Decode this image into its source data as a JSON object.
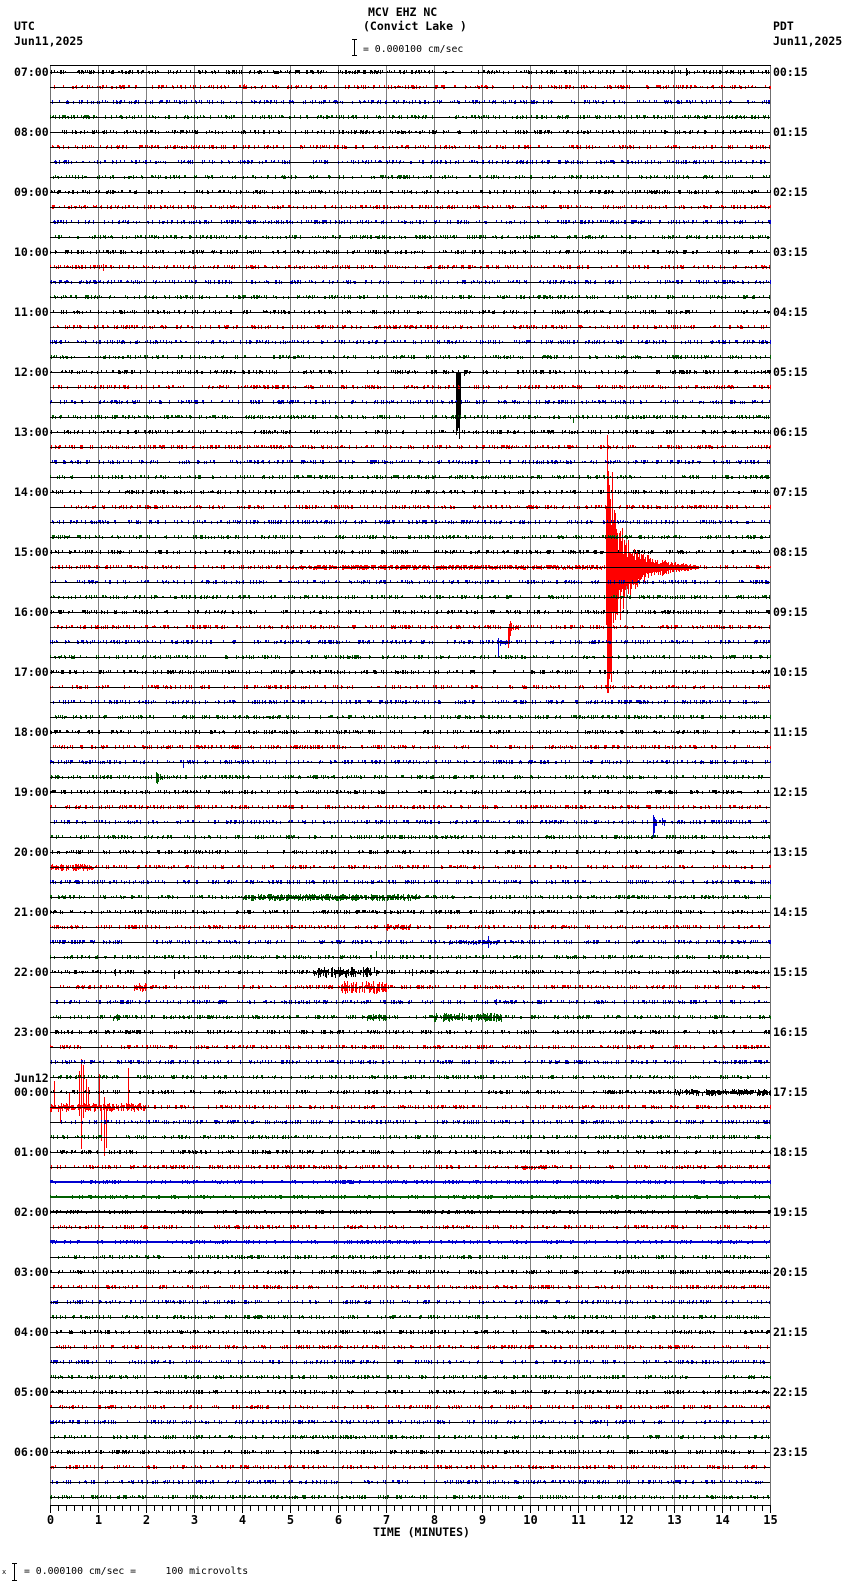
{
  "header": {
    "station": "MCV EHZ NC",
    "location": "(Convict Lake )",
    "scale_text": "= 0.000100 cm/sec",
    "left_tz": "UTC",
    "left_date": "Jun11,2025",
    "right_tz": "PDT",
    "right_date": "Jun11,2025"
  },
  "footer": {
    "glyph": "x",
    "text": "= 0.000100 cm/sec =     100 microvolts"
  },
  "chart_data": {
    "type": "line",
    "subtype": "helicorder",
    "title": "MCV EHZ NC",
    "subtitle": "(Convict Lake )",
    "xlabel": "TIME (MINUTES)",
    "ylabel_left": "UTC",
    "ylabel_right": "PDT",
    "xlim": [
      0,
      15
    ],
    "x_ticks": [
      0,
      1,
      2,
      3,
      4,
      5,
      6,
      7,
      8,
      9,
      10,
      11,
      12,
      13,
      14,
      15
    ],
    "minor_tick_seconds": 10,
    "trace_minutes": 15,
    "trace_count": 96,
    "grid": true,
    "grid_color": "#808080",
    "border_color": "#707070",
    "trace_colors": [
      "#000000",
      "#ff0000",
      "#0000d0",
      "#006000"
    ],
    "noise_amp": 2,
    "noise_density": 0.35,
    "scale": "0.000100 cm/sec = 100 microvolts",
    "date_change_label": {
      "trace": 68,
      "text": "Jun12"
    },
    "left_labels": [
      {
        "trace": 0,
        "text": "07:00"
      },
      {
        "trace": 4,
        "text": "08:00"
      },
      {
        "trace": 8,
        "text": "09:00"
      },
      {
        "trace": 12,
        "text": "10:00"
      },
      {
        "trace": 16,
        "text": "11:00"
      },
      {
        "trace": 20,
        "text": "12:00"
      },
      {
        "trace": 24,
        "text": "13:00"
      },
      {
        "trace": 28,
        "text": "14:00"
      },
      {
        "trace": 32,
        "text": "15:00"
      },
      {
        "trace": 36,
        "text": "16:00"
      },
      {
        "trace": 40,
        "text": "17:00"
      },
      {
        "trace": 44,
        "text": "18:00"
      },
      {
        "trace": 48,
        "text": "19:00"
      },
      {
        "trace": 52,
        "text": "20:00"
      },
      {
        "trace": 56,
        "text": "21:00"
      },
      {
        "trace": 60,
        "text": "22:00"
      },
      {
        "trace": 64,
        "text": "23:00"
      },
      {
        "trace": 68,
        "text": "00:00"
      },
      {
        "trace": 72,
        "text": "01:00"
      },
      {
        "trace": 76,
        "text": "02:00"
      },
      {
        "trace": 80,
        "text": "03:00"
      },
      {
        "trace": 84,
        "text": "04:00"
      },
      {
        "trace": 88,
        "text": "05:00"
      },
      {
        "trace": 92,
        "text": "06:00"
      }
    ],
    "right_labels": [
      {
        "trace": 0,
        "text": "00:15"
      },
      {
        "trace": 4,
        "text": "01:15"
      },
      {
        "trace": 8,
        "text": "02:15"
      },
      {
        "trace": 12,
        "text": "03:15"
      },
      {
        "trace": 16,
        "text": "04:15"
      },
      {
        "trace": 20,
        "text": "05:15"
      },
      {
        "trace": 24,
        "text": "06:15"
      },
      {
        "trace": 28,
        "text": "07:15"
      },
      {
        "trace": 32,
        "text": "08:15"
      },
      {
        "trace": 36,
        "text": "09:15"
      },
      {
        "trace": 40,
        "text": "10:15"
      },
      {
        "trace": 44,
        "text": "11:15"
      },
      {
        "trace": 48,
        "text": "12:15"
      },
      {
        "trace": 52,
        "text": "13:15"
      },
      {
        "trace": 56,
        "text": "14:15"
      },
      {
        "trace": 60,
        "text": "15:15"
      },
      {
        "trace": 64,
        "text": "16:15"
      },
      {
        "trace": 68,
        "text": "17:15"
      },
      {
        "trace": 72,
        "text": "18:15"
      },
      {
        "trace": 76,
        "text": "19:15"
      },
      {
        "trace": 80,
        "text": "20:15"
      },
      {
        "trace": 84,
        "text": "21:15"
      },
      {
        "trace": 88,
        "text": "22:15"
      },
      {
        "trace": 92,
        "text": "23:15"
      }
    ],
    "thick_traces": [
      74,
      75,
      76,
      78
    ],
    "features": [
      {
        "trace": 0,
        "spikes": [
          [
            13.25,
            4,
            3
          ],
          [
            13.28,
            2,
            2
          ],
          [
            14.38,
            2,
            2
          ]
        ]
      },
      {
        "trace": 1,
        "spikes": [
          [
            4.05,
            3,
            1
          ]
        ]
      },
      {
        "trace": 13,
        "spikes": [
          [
            1.1,
            3,
            3
          ]
        ]
      },
      {
        "trace": 20,
        "spikes": [
          [
            8.45,
            0,
            60
          ],
          [
            8.46,
            0,
            62
          ],
          [
            8.47,
            0,
            58
          ],
          [
            8.51,
            0,
            55
          ],
          [
            8.52,
            0,
            64
          ],
          [
            8.53,
            0,
            66
          ],
          [
            8.54,
            0,
            45
          ],
          [
            8.62,
            0,
            3
          ]
        ]
      },
      {
        "trace": 23,
        "spikes": [
          [
            10.9,
            0,
            5
          ]
        ]
      },
      {
        "trace": 33,
        "bursts": [
          [
            5.0,
            11.58,
            2
          ]
        ],
        "envelope": [
          [
            11.58,
            142,
            131
          ],
          [
            11.7,
            138,
            128
          ],
          [
            11.73,
            60,
            70
          ],
          [
            11.87,
            45,
            55
          ],
          [
            12.0,
            32,
            36
          ],
          [
            12.15,
            20,
            22
          ],
          [
            12.5,
            12,
            12
          ],
          [
            12.85,
            6,
            6
          ],
          [
            13.5,
            2,
            2
          ]
        ]
      },
      {
        "trace": 37,
        "spikes": [
          [
            9.55,
            0,
            20
          ],
          [
            9.56,
            3,
            16
          ],
          [
            9.58,
            6,
            8
          ],
          [
            9.6,
            4,
            3
          ]
        ],
        "bursts": [
          [
            9.55,
            9.75,
            3
          ]
        ]
      },
      {
        "trace": 38,
        "spikes": [
          [
            9.33,
            4,
            14
          ],
          [
            9.34,
            3,
            10
          ],
          [
            9.37,
            2,
            3
          ]
        ],
        "bursts": [
          [
            9.33,
            9.5,
            2
          ]
        ]
      },
      {
        "trace": 46,
        "spikes": [
          [
            2.77,
            0,
            5
          ]
        ]
      },
      {
        "trace": 47,
        "spikes": [
          [
            2.2,
            5,
            5
          ],
          [
            2.22,
            4,
            6
          ],
          [
            2.24,
            3,
            4
          ]
        ],
        "bursts": [
          [
            2.2,
            2.35,
            3
          ]
        ]
      },
      {
        "trace": 50,
        "spikes": [
          [
            12.56,
            7,
            15
          ],
          [
            12.57,
            6,
            13
          ],
          [
            12.58,
            5,
            10
          ]
        ],
        "bursts": [
          [
            12.56,
            12.8,
            4
          ]
        ]
      },
      {
        "trace": 53,
        "bursts": [
          [
            0.0,
            0.9,
            3
          ]
        ]
      },
      {
        "trace": 55,
        "bursts": [
          [
            4.0,
            7.7,
            3
          ]
        ]
      },
      {
        "trace": 57,
        "bursts": [
          [
            7.0,
            7.5,
            3
          ]
        ]
      },
      {
        "trace": 58,
        "bursts": [
          [
            8.3,
            9.3,
            2
          ]
        ],
        "spikes": [
          [
            9.12,
            6,
            5
          ]
        ]
      },
      {
        "trace": 59,
        "spikes": [
          [
            6.8,
            6,
            0
          ]
        ]
      },
      {
        "trace": 60,
        "bursts": [
          [
            5.5,
            6.8,
            5
          ]
        ],
        "spikes": [
          [
            1.35,
            3,
            3
          ],
          [
            2.58,
            2,
            6
          ],
          [
            7.55,
            3,
            3
          ]
        ]
      },
      {
        "trace": 61,
        "bursts": [
          [
            6.04,
            7.0,
            6
          ],
          [
            1.73,
            2.0,
            4
          ]
        ]
      },
      {
        "trace": 62,
        "spikes": [
          [
            9.3,
            3,
            2
          ]
        ]
      },
      {
        "trace": 63,
        "bursts": [
          [
            1.3,
            1.45,
            4
          ],
          [
            6.6,
            7.0,
            3
          ],
          [
            8.0,
            9.4,
            4
          ]
        ]
      },
      {
        "trace": 68,
        "bursts": [
          [
            13.0,
            15.0,
            3
          ]
        ]
      },
      {
        "trace": 69,
        "bursts": [
          [
            0.0,
            2.0,
            4
          ]
        ],
        "spikes": [
          [
            0.08,
            26,
            1
          ],
          [
            0.21,
            0,
            14
          ],
          [
            0.4,
            14,
            0
          ],
          [
            0.6,
            36,
            8
          ],
          [
            0.64,
            48,
            41
          ],
          [
            0.69,
            42,
            10
          ],
          [
            0.74,
            28,
            2
          ],
          [
            0.79,
            20,
            0
          ],
          [
            1.02,
            33,
            0
          ],
          [
            1.07,
            0,
            33
          ],
          [
            1.12,
            10,
            48
          ],
          [
            1.16,
            0,
            40
          ],
          [
            1.63,
            39,
            0
          ]
        ]
      },
      {
        "trace": 73,
        "bursts": [
          [
            9.8,
            10.4,
            2
          ]
        ]
      },
      {
        "trace": 90,
        "spikes": [
          [
            11.6,
            2,
            3
          ]
        ]
      }
    ]
  }
}
